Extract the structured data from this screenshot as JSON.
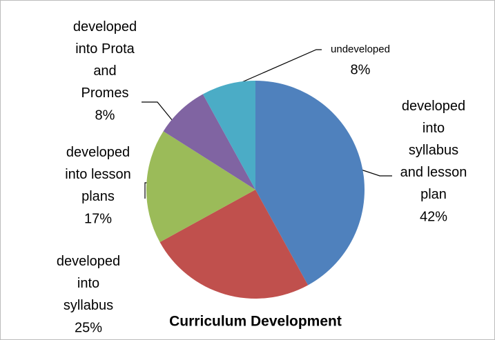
{
  "chart_data": {
    "type": "pie",
    "title": "Curriculum Development",
    "categories": [
      "developed into syllabus and lesson plan",
      "developed into syllabus",
      "developed into lesson plans",
      "developed into Prota and Promes",
      "undeveloped"
    ],
    "values": [
      42,
      25,
      17,
      8,
      8
    ],
    "value_labels": [
      "42%",
      "25%",
      "17%",
      "8%",
      "8%"
    ],
    "colors": [
      "#4f81bd",
      "#c0504d",
      "#9bbb59",
      "#8064a2",
      "#4bacc6"
    ]
  }
}
